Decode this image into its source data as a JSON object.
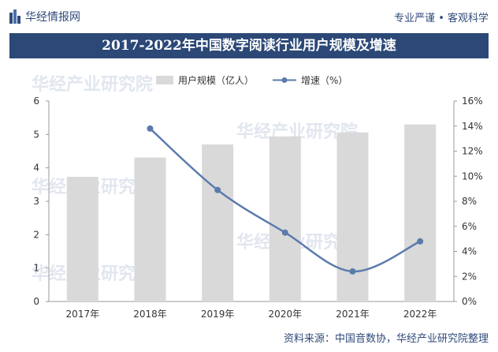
{
  "header": {
    "brand": "华经情报网",
    "slogan": "专业严谨 • 客观科学"
  },
  "chart_data": {
    "type": "bar",
    "title": "2017-2022年中国数字阅读行业用户规模及增速",
    "categories": [
      "2017年",
      "2018年",
      "2019年",
      "2020年",
      "2021年",
      "2022年"
    ],
    "series": [
      {
        "name": "用户规模（亿人）",
        "type": "bar",
        "axis": "left",
        "values": [
          3.73,
          4.31,
          4.7,
          4.94,
          5.06,
          5.3
        ],
        "color": "#d9d9d9"
      },
      {
        "name": "增速（%）",
        "type": "line",
        "axis": "right",
        "values": [
          null,
          13.8,
          8.9,
          5.5,
          2.4,
          4.8
        ],
        "color": "#5b7bac"
      }
    ],
    "left_axis": {
      "ylim": [
        0,
        6
      ],
      "ticks": [
        "0",
        "1",
        "2",
        "3",
        "4",
        "5",
        "6"
      ]
    },
    "right_axis": {
      "ylim": [
        0,
        16
      ],
      "ticks": [
        "0%",
        "2%",
        "4%",
        "6%",
        "8%",
        "10%",
        "12%",
        "14%",
        "16%"
      ]
    },
    "legend_position": "top-center",
    "grid": false
  },
  "watermark": {
    "text": "华经产业研究院"
  },
  "footer": {
    "source": "资料来源：中国音数协，华经产业研究院整理"
  }
}
